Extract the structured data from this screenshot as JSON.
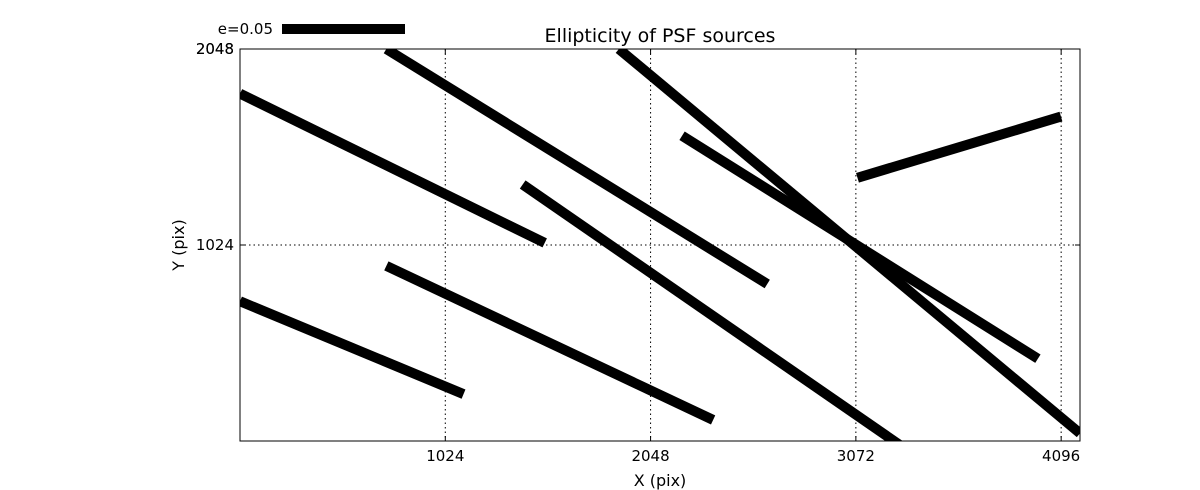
{
  "chart_data": {
    "type": "whisker",
    "title": "Ellipticity of PSF sources",
    "xlabel": "X (pix)",
    "ylabel": "Y (pix)",
    "xlim": [
      0,
      4190
    ],
    "ylim": [
      0,
      2048
    ],
    "x_ticks": [
      1024,
      2048,
      3072,
      4096
    ],
    "x_tick_labels": [
      "1024",
      "2048",
      "3072",
      "4096"
    ],
    "y_ticks": [
      1024,
      2048
    ],
    "y_tick_labels": [
      "1024",
      "2048"
    ],
    "y_overlap_tick_label": "2048",
    "grid": true,
    "legend": {
      "label": "e=0.05",
      "position": "top-left"
    },
    "segments": [
      {
        "x1": 0,
        "y1": 730,
        "x2": 1115,
        "y2": 245
      },
      {
        "x1": 730,
        "y1": 915,
        "x2": 2360,
        "y2": 110
      },
      {
        "x1": 0,
        "y1": 1815,
        "x2": 1520,
        "y2": 1035
      },
      {
        "x1": 1410,
        "y1": 1340,
        "x2": 3290,
        "y2": -20
      },
      {
        "x1": 730,
        "y1": 2048,
        "x2": 2630,
        "y2": 820
      },
      {
        "x1": 2205,
        "y1": 1595,
        "x2": 3980,
        "y2": 430
      },
      {
        "x1": 1890,
        "y1": 2048,
        "x2": 4190,
        "y2": 40
      },
      {
        "x1": 3080,
        "y1": 1375,
        "x2": 4095,
        "y2": 1695
      }
    ]
  }
}
